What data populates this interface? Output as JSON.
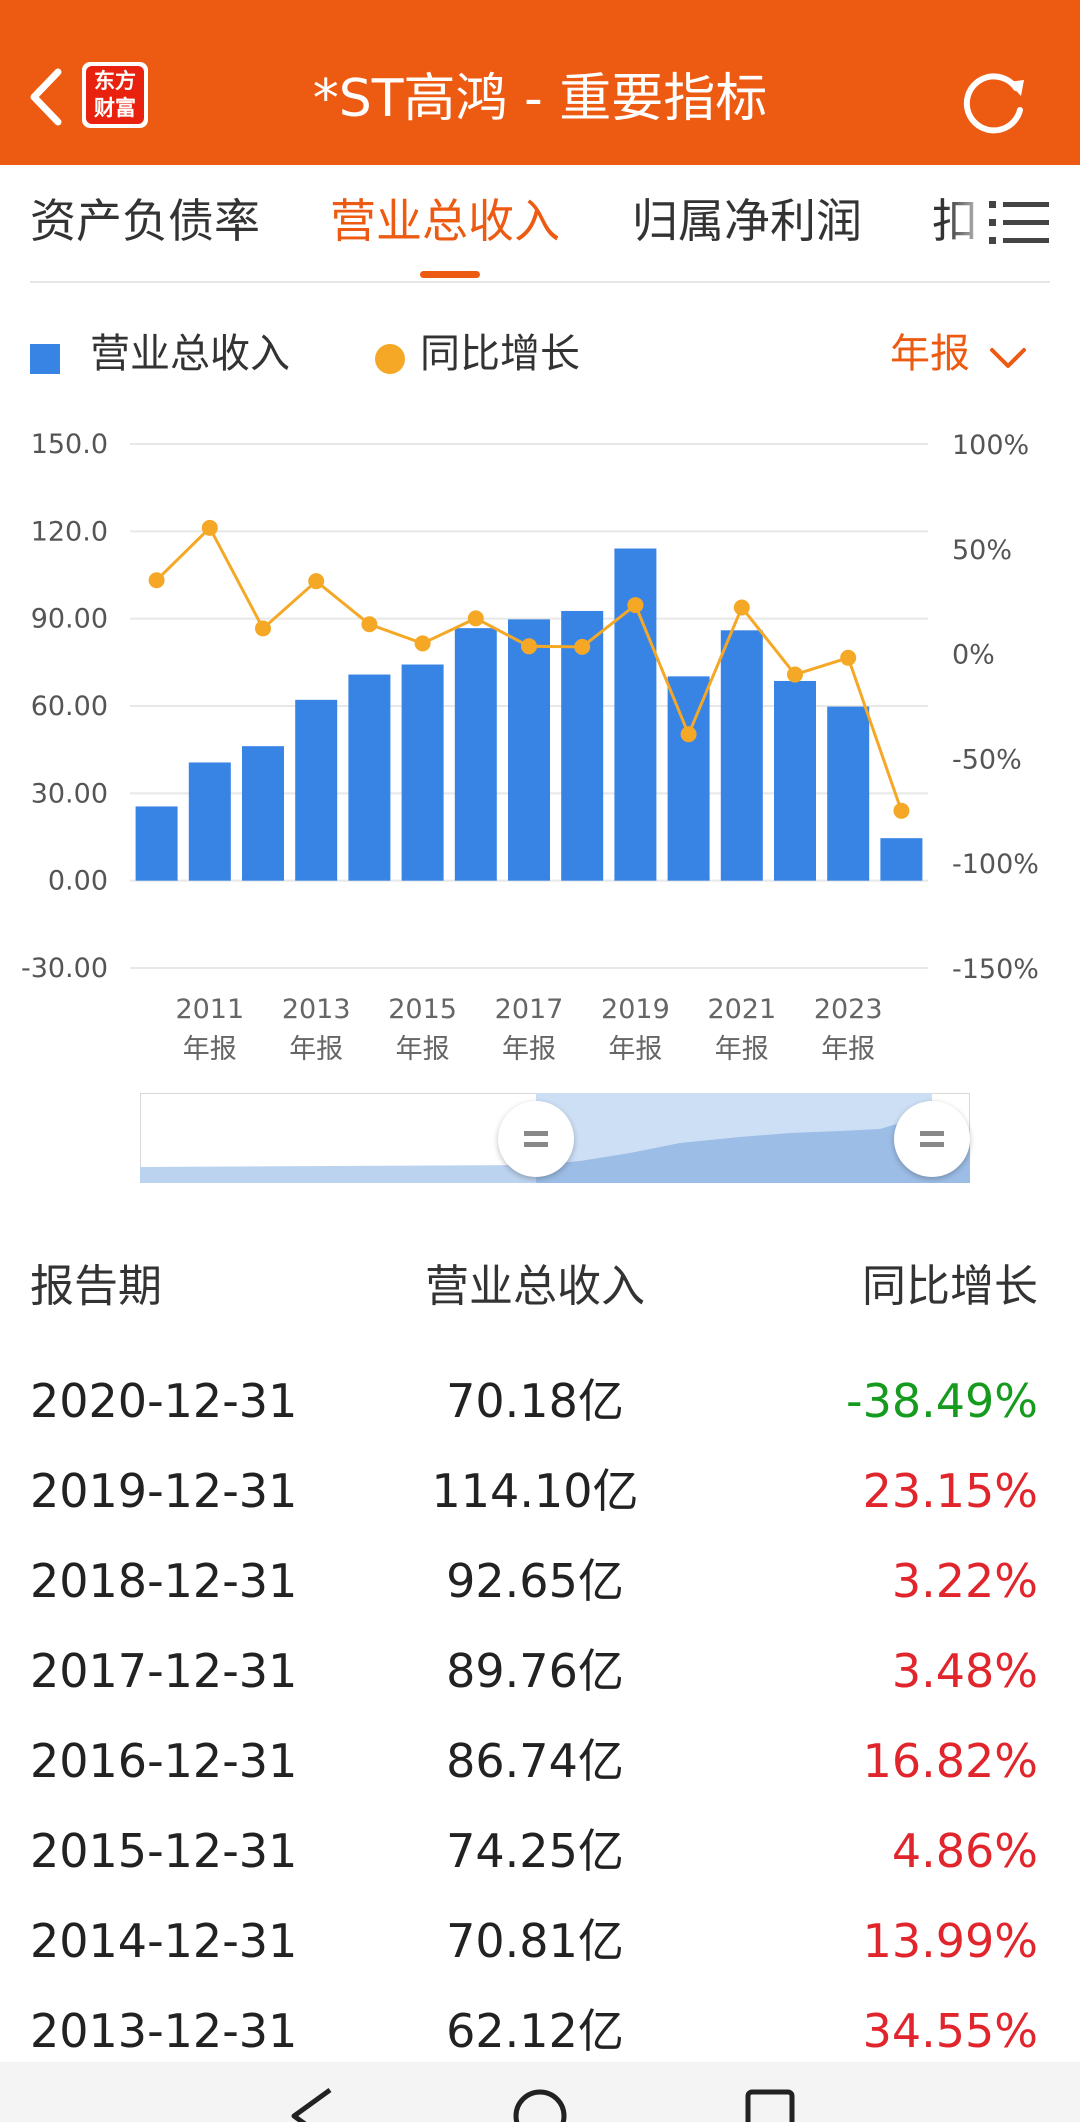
{
  "header": {
    "title": "*ST高鸿 - 重要指标",
    "logo_line1": "东方",
    "logo_line2": "财富",
    "accent": "#ed5a11"
  },
  "tabs": [
    {
      "label": "资产负债率",
      "active": false
    },
    {
      "label": "营业总收入",
      "active": true
    },
    {
      "label": "归属净利润",
      "active": false
    },
    {
      "label": "扣",
      "active": false
    }
  ],
  "legend": {
    "bar_label": "营业总收入",
    "line_label": "同比增长",
    "period": "年报"
  },
  "chart_data": {
    "type": "bar",
    "categories": [
      "2010",
      "2011",
      "2012",
      "2013",
      "2014",
      "2015",
      "2016",
      "2017",
      "2018",
      "2019",
      "2020",
      "2021",
      "2022",
      "2023",
      "2024"
    ],
    "x_tick_labels": [
      {
        "year": "2011",
        "suffix": "年报"
      },
      {
        "year": "2013",
        "suffix": "年报"
      },
      {
        "year": "2015",
        "suffix": "年报"
      },
      {
        "year": "2017",
        "suffix": "年报"
      },
      {
        "year": "2019",
        "suffix": "年报"
      },
      {
        "year": "2021",
        "suffix": "年报"
      },
      {
        "year": "2023",
        "suffix": "年报"
      }
    ],
    "series": [
      {
        "name": "营业总收入",
        "type": "bar",
        "color": "#3884e5",
        "axis": "left",
        "values": [
          25.5,
          40.6,
          46.2,
          62.12,
          70.81,
          74.25,
          86.74,
          89.76,
          92.65,
          114.1,
          70.18,
          86.0,
          68.6,
          59.8,
          14.6
        ]
      },
      {
        "name": "同比增长",
        "type": "line",
        "color": "#f5a826",
        "axis": "right",
        "values": [
          35,
          60,
          12,
          34.55,
          13.99,
          4.86,
          16.82,
          3.48,
          3.22,
          23.15,
          -38.49,
          22,
          -10,
          -2,
          -75
        ]
      }
    ],
    "left_axis": {
      "ticks": [
        "150.0",
        "120.0",
        "90.00",
        "60.00",
        "30.00",
        "0.00",
        "-30.00"
      ],
      "ylim": [
        -30,
        150
      ]
    },
    "right_axis": {
      "ticks": [
        "100%",
        "50%",
        "0%",
        "-50%",
        "-100%",
        "-150%"
      ],
      "ylim": [
        -150,
        100
      ]
    },
    "grid": true,
    "legend_position": "top-left"
  },
  "table": {
    "headers": [
      "报告期",
      "营业总收入",
      "同比增长"
    ],
    "rows": [
      {
        "date": "2020-12-31",
        "revenue": "70.18亿",
        "yoy": "-38.49%",
        "color": "#169b1e"
      },
      {
        "date": "2019-12-31",
        "revenue": "114.10亿",
        "yoy": "23.15%",
        "color": "#e0262c"
      },
      {
        "date": "2018-12-31",
        "revenue": "92.65亿",
        "yoy": "3.22%",
        "color": "#e0262c"
      },
      {
        "date": "2017-12-31",
        "revenue": "89.76亿",
        "yoy": "3.48%",
        "color": "#e0262c"
      },
      {
        "date": "2016-12-31",
        "revenue": "86.74亿",
        "yoy": "16.82%",
        "color": "#e0262c"
      },
      {
        "date": "2015-12-31",
        "revenue": "74.25亿",
        "yoy": "4.86%",
        "color": "#e0262c"
      },
      {
        "date": "2014-12-31",
        "revenue": "70.81亿",
        "yoy": "13.99%",
        "color": "#e0262c"
      },
      {
        "date": "2013-12-31",
        "revenue": "62.12亿",
        "yoy": "34.55%",
        "color": "#e0262c"
      }
    ]
  }
}
